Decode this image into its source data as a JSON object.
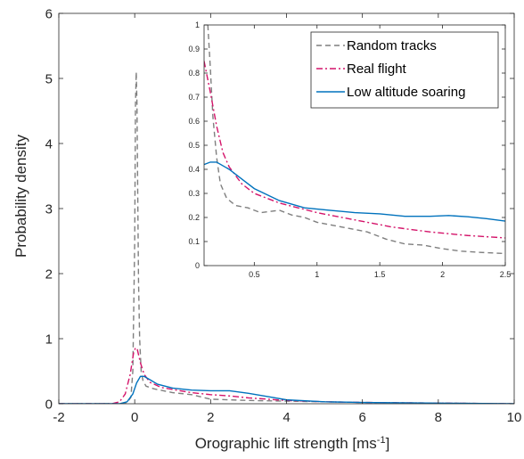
{
  "chart_data": [
    {
      "type": "line",
      "panel": "main",
      "xlabel": "Orographic lift strength [ms",
      "xlabel_sup": "-1",
      "xlabel_end": "]",
      "ylabel": "Probability density",
      "xlim": [
        -2,
        10
      ],
      "ylim": [
        0,
        6
      ],
      "xticks": [
        "-2",
        "0",
        "2",
        "4",
        "6",
        "8",
        "10"
      ],
      "yticks": [
        "0",
        "1",
        "2",
        "3",
        "4",
        "5",
        "6"
      ],
      "grid": false,
      "series": [
        {
          "name": "Random tracks",
          "color": "#7f7f7f",
          "dash": "dashed",
          "points": [
            [
              -2,
              0
            ],
            [
              -0.4,
              0
            ],
            [
              -0.2,
              0.02
            ],
            [
              -0.1,
              0.1
            ],
            [
              -0.05,
              0.5
            ],
            [
              0,
              2.5
            ],
            [
              0.02,
              4.6
            ],
            [
              0.04,
              5.1
            ],
            [
              0.06,
              4.6
            ],
            [
              0.08,
              3.2
            ],
            [
              0.1,
              1.9
            ],
            [
              0.13,
              1.0
            ],
            [
              0.17,
              0.5
            ],
            [
              0.22,
              0.35
            ],
            [
              0.3,
              0.27
            ],
            [
              0.5,
              0.23
            ],
            [
              1,
              0.17
            ],
            [
              1.5,
              0.14
            ],
            [
              2,
              0.07
            ],
            [
              3,
              0.05
            ],
            [
              4,
              0.04
            ],
            [
              6,
              0.02
            ],
            [
              8,
              0.01
            ],
            [
              10,
              0
            ]
          ]
        },
        {
          "name": "Real flight",
          "color": "#d4146a",
          "dash": "dashdot",
          "points": [
            [
              -2,
              0
            ],
            [
              -0.6,
              0
            ],
            [
              -0.4,
              0.03
            ],
            [
              -0.25,
              0.15
            ],
            [
              -0.12,
              0.45
            ],
            [
              -0.03,
              0.78
            ],
            [
              0.02,
              0.86
            ],
            [
              0.07,
              0.83
            ],
            [
              0.15,
              0.63
            ],
            [
              0.25,
              0.45
            ],
            [
              0.4,
              0.33
            ],
            [
              0.7,
              0.25
            ],
            [
              1,
              0.22
            ],
            [
              1.5,
              0.17
            ],
            [
              2,
              0.14
            ],
            [
              2.5,
              0.12
            ],
            [
              3,
              0.09
            ],
            [
              4,
              0.05
            ],
            [
              5,
              0.03
            ],
            [
              6,
              0.02
            ],
            [
              8,
              0.01
            ],
            [
              10,
              0
            ]
          ]
        },
        {
          "name": "Low altitude soaring",
          "color": "#0072bd",
          "dash": "solid",
          "points": [
            [
              -2,
              0
            ],
            [
              -0.4,
              0
            ],
            [
              -0.2,
              0.03
            ],
            [
              -0.05,
              0.15
            ],
            [
              0.05,
              0.32
            ],
            [
              0.15,
              0.42
            ],
            [
              0.25,
              0.42
            ],
            [
              0.4,
              0.37
            ],
            [
              0.6,
              0.3
            ],
            [
              1,
              0.24
            ],
            [
              1.5,
              0.21
            ],
            [
              2,
              0.2
            ],
            [
              2.5,
              0.2
            ],
            [
              3,
              0.16
            ],
            [
              3.5,
              0.11
            ],
            [
              4,
              0.06
            ],
            [
              5,
              0.03
            ],
            [
              6,
              0.02
            ],
            [
              8,
              0.01
            ],
            [
              10,
              0
            ]
          ]
        }
      ]
    },
    {
      "type": "line",
      "panel": "inset",
      "xlim": [
        0.1,
        2.5
      ],
      "ylim": [
        0,
        1
      ],
      "xticks": [
        "0.5",
        "1",
        "1.5",
        "2",
        "2.5"
      ],
      "yticks": [
        "0",
        "0.1",
        "0.2",
        "0.3",
        "0.4",
        "0.5",
        "0.6",
        "0.7",
        "0.8",
        "0.9",
        "1"
      ],
      "legend_position": "top-right",
      "legend": [
        "Random tracks",
        "Real flight",
        "Low altitude soaring"
      ],
      "series": [
        {
          "name": "Random tracks",
          "color": "#7f7f7f",
          "dash": "dashed",
          "points": [
            [
              0.13,
              1.0
            ],
            [
              0.15,
              0.82
            ],
            [
              0.17,
              0.62
            ],
            [
              0.2,
              0.45
            ],
            [
              0.23,
              0.34
            ],
            [
              0.28,
              0.28
            ],
            [
              0.35,
              0.25
            ],
            [
              0.45,
              0.24
            ],
            [
              0.55,
              0.22
            ],
            [
              0.7,
              0.23
            ],
            [
              0.8,
              0.21
            ],
            [
              0.9,
              0.2
            ],
            [
              1.0,
              0.18
            ],
            [
              1.2,
              0.16
            ],
            [
              1.4,
              0.14
            ],
            [
              1.55,
              0.11
            ],
            [
              1.7,
              0.09
            ],
            [
              1.85,
              0.085
            ],
            [
              2.0,
              0.07
            ],
            [
              2.15,
              0.06
            ],
            [
              2.3,
              0.055
            ],
            [
              2.5,
              0.05
            ]
          ]
        },
        {
          "name": "Real flight",
          "color": "#d4146a",
          "dash": "dashdot",
          "points": [
            [
              0.1,
              0.85
            ],
            [
              0.15,
              0.72
            ],
            [
              0.2,
              0.58
            ],
            [
              0.25,
              0.47
            ],
            [
              0.3,
              0.41
            ],
            [
              0.4,
              0.34
            ],
            [
              0.5,
              0.3
            ],
            [
              0.7,
              0.26
            ],
            [
              1.0,
              0.22
            ],
            [
              1.3,
              0.19
            ],
            [
              1.6,
              0.16
            ],
            [
              1.9,
              0.14
            ],
            [
              2.2,
              0.125
            ],
            [
              2.5,
              0.115
            ]
          ]
        },
        {
          "name": "Low altitude soaring",
          "color": "#0072bd",
          "dash": "solid",
          "points": [
            [
              0.1,
              0.42
            ],
            [
              0.15,
              0.43
            ],
            [
              0.2,
              0.43
            ],
            [
              0.3,
              0.4
            ],
            [
              0.4,
              0.36
            ],
            [
              0.5,
              0.32
            ],
            [
              0.7,
              0.27
            ],
            [
              0.9,
              0.24
            ],
            [
              1.1,
              0.23
            ],
            [
              1.3,
              0.22
            ],
            [
              1.5,
              0.215
            ],
            [
              1.7,
              0.205
            ],
            [
              1.9,
              0.205
            ],
            [
              2.05,
              0.208
            ],
            [
              2.2,
              0.203
            ],
            [
              2.35,
              0.195
            ],
            [
              2.5,
              0.185
            ]
          ]
        }
      ]
    }
  ]
}
